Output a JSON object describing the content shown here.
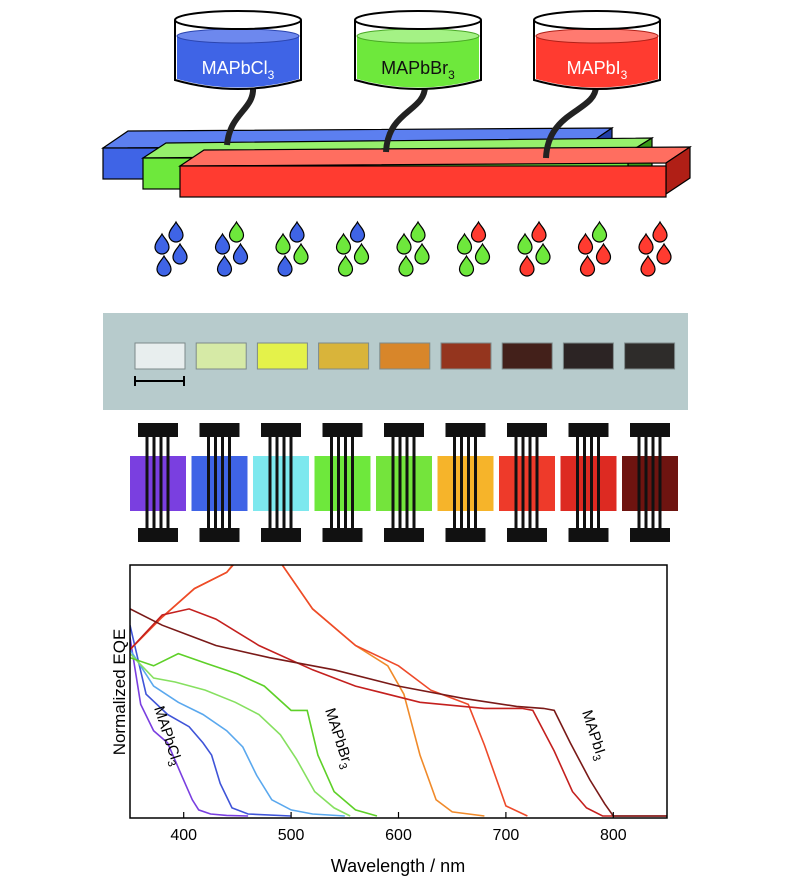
{
  "beakers": [
    {
      "formula": "MAPbCl",
      "subscript": "3",
      "color": "#3f64e6"
    },
    {
      "formula": "MAPbBr",
      "subscript": "3",
      "color": "#6ee83c"
    },
    {
      "formula": "MAPbI",
      "subscript": "3",
      "color": "#ff3b30"
    }
  ],
  "droplet_ratios": [
    [
      "blue",
      "blue",
      "blue",
      "blue"
    ],
    [
      "green",
      "blue",
      "blue",
      "blue"
    ],
    [
      "blue",
      "green",
      "green",
      "blue"
    ],
    [
      "blue",
      "green",
      "green",
      "green"
    ],
    [
      "green",
      "green",
      "green",
      "green"
    ],
    [
      "red",
      "green",
      "green",
      "green"
    ],
    [
      "red",
      "green",
      "green",
      "red"
    ],
    [
      "green",
      "red",
      "red",
      "red"
    ],
    [
      "red",
      "red",
      "red",
      "red"
    ]
  ],
  "film_colors": [
    "#e8eeee",
    "#d6eaa6",
    "#e4f24a",
    "#d9b43a",
    "#d8862a",
    "#94351e",
    "#43201a",
    "#2c2424",
    "#2e2c2a"
  ],
  "device_colors": [
    "#7a3fe0",
    "#3f64e6",
    "#7de8ee",
    "#6ee83c",
    "#74e43c",
    "#f6b42a",
    "#ee3a2a",
    "#dd2a22",
    "#6e1410"
  ],
  "chart_data": {
    "type": "line",
    "xlabel": "Wavelength / nm",
    "ylabel": "Normalized EQE",
    "xlim": [
      350,
      850
    ],
    "xticks": [
      400,
      500,
      600,
      700,
      800
    ],
    "annotations": [
      {
        "base": "MAPbCl",
        "sub": "3"
      },
      {
        "base": "MAPbBr",
        "sub": "3"
      },
      {
        "base": "MAPbI",
        "sub": "3"
      }
    ],
    "series": [
      {
        "color": "#7a3fe0",
        "x": [
          350,
          360,
          372,
          385,
          398,
          408,
          414,
          425,
          440,
          460
        ],
        "y": [
          0.88,
          0.55,
          0.42,
          0.36,
          0.2,
          0.08,
          0.03,
          0.01,
          0.003,
          0.0
        ]
      },
      {
        "color": "#3f54d8",
        "x": [
          350,
          365,
          385,
          405,
          418,
          426,
          434,
          445,
          460,
          500
        ],
        "y": [
          0.94,
          0.6,
          0.5,
          0.44,
          0.36,
          0.3,
          0.16,
          0.04,
          0.01,
          0.0
        ]
      },
      {
        "color": "#5aa8ee",
        "x": [
          350,
          372,
          395,
          418,
          440,
          455,
          468,
          482,
          500,
          520,
          550
        ],
        "y": [
          0.82,
          0.64,
          0.56,
          0.5,
          0.42,
          0.34,
          0.2,
          0.08,
          0.03,
          0.01,
          0.0
        ]
      },
      {
        "color": "#86e060",
        "x": [
          350,
          372,
          392,
          420,
          448,
          470,
          490,
          505,
          522,
          540,
          555
        ],
        "y": [
          0.8,
          0.68,
          0.66,
          0.62,
          0.56,
          0.5,
          0.4,
          0.28,
          0.12,
          0.04,
          0.0
        ]
      },
      {
        "color": "#5ed028",
        "x": [
          350,
          372,
          395,
          422,
          450,
          475,
          500,
          508,
          515,
          525,
          540,
          560,
          580
        ],
        "y": [
          0.78,
          0.74,
          0.8,
          0.75,
          0.7,
          0.64,
          0.52,
          0.52,
          0.52,
          0.3,
          0.12,
          0.03,
          0.0
        ]
      },
      {
        "color": "#f08a2a",
        "x": [
          350,
          380,
          410,
          440,
          462,
          490,
          520,
          560,
          590,
          605,
          620,
          635,
          650,
          680
        ],
        "y": [
          0.82,
          0.98,
          1.12,
          1.2,
          1.35,
          1.25,
          1.02,
          0.84,
          0.74,
          0.6,
          0.3,
          0.08,
          0.02,
          0.0
        ]
      },
      {
        "color": "#ee4a2a",
        "x": [
          350,
          380,
          410,
          440,
          465,
          490,
          520,
          560,
          600,
          630,
          650,
          665,
          680,
          700,
          720
        ],
        "y": [
          0.82,
          0.98,
          1.12,
          1.2,
          1.35,
          1.25,
          1.02,
          0.84,
          0.74,
          0.62,
          0.58,
          0.55,
          0.35,
          0.05,
          0.0
        ]
      },
      {
        "color": "#c4201e",
        "x": [
          350,
          380,
          405,
          430,
          470,
          520,
          560,
          620,
          680,
          715,
          725,
          745,
          762,
          775,
          790,
          850
        ],
        "y": [
          0.82,
          0.99,
          1.02,
          0.97,
          0.84,
          0.72,
          0.64,
          0.56,
          0.53,
          0.53,
          0.52,
          0.32,
          0.12,
          0.04,
          0.0,
          0.0
        ]
      },
      {
        "color": "#7a1a18",
        "x": [
          350,
          380,
          430,
          480,
          540,
          600,
          660,
          710,
          735,
          745,
          760,
          778,
          792,
          800,
          850
        ],
        "y": [
          1.02,
          0.94,
          0.84,
          0.78,
          0.72,
          0.64,
          0.58,
          0.54,
          0.53,
          0.52,
          0.36,
          0.18,
          0.06,
          0.0,
          0.0
        ]
      }
    ]
  }
}
